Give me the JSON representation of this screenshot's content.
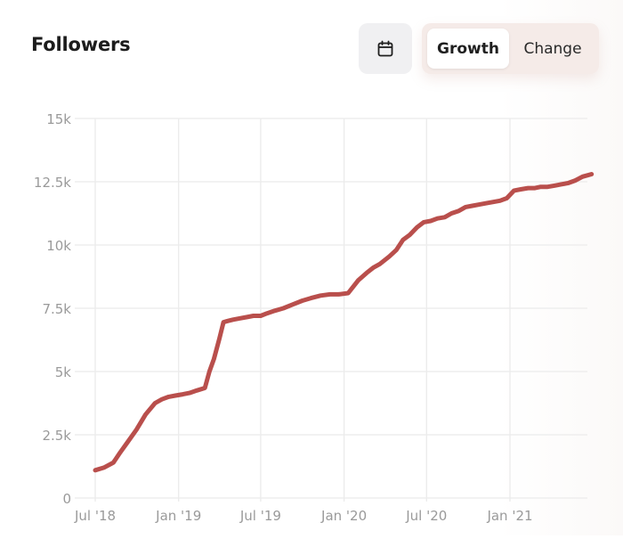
{
  "header": {
    "title": "Followers",
    "calendar_icon": "calendar-icon",
    "tabs": [
      {
        "label": "Growth",
        "active": true
      },
      {
        "label": "Change",
        "active": false
      }
    ]
  },
  "colors": {
    "line": "#b94f4c",
    "grid": "#ebebeb",
    "tick": "#9a9a9a",
    "toggle_bg": "#f5ebe8",
    "calendar_bg": "#f0f0f2"
  },
  "chart_data": {
    "type": "line",
    "xlabel": "",
    "ylabel": "",
    "ylim": [
      0,
      15000
    ],
    "yticks": [
      0,
      2500,
      5000,
      7500,
      10000,
      12500,
      15000
    ],
    "ytick_labels": [
      "0",
      "2.5k",
      "5k",
      "7.5k",
      "10k",
      "12.5k",
      "15k"
    ],
    "xlim": [
      "2018-07-01",
      "2021-06-30"
    ],
    "xticks": [
      "2018-07-01",
      "2019-01-01",
      "2019-07-01",
      "2020-01-01",
      "2020-07-01",
      "2021-01-01"
    ],
    "xtick_labels": [
      "Jul '18",
      "Jan '19",
      "Jul '19",
      "Jan '20",
      "Jul '20",
      "Jan '21"
    ],
    "grid": true,
    "series": [
      {
        "x": [
          "2018-07-01",
          "2018-07-20",
          "2018-08-10",
          "2018-08-25",
          "2018-09-10",
          "2018-09-30",
          "2018-10-20",
          "2018-11-10",
          "2018-11-25",
          "2018-12-10",
          "2018-12-25",
          "2019-01-10",
          "2019-01-25",
          "2019-02-10",
          "2019-02-28",
          "2019-03-10",
          "2019-03-20",
          "2019-04-01",
          "2019-04-10",
          "2019-04-20",
          "2019-05-01",
          "2019-05-15",
          "2019-06-01",
          "2019-06-15",
          "2019-07-01",
          "2019-07-15",
          "2019-08-01",
          "2019-08-20",
          "2019-09-10",
          "2019-10-01",
          "2019-10-20",
          "2019-11-10",
          "2019-12-01",
          "2019-12-20",
          "2020-01-10",
          "2020-02-01",
          "2020-02-20",
          "2020-03-05",
          "2020-03-20",
          "2020-04-10",
          "2020-04-25",
          "2020-05-10",
          "2020-05-25",
          "2020-06-10",
          "2020-06-25",
          "2020-07-10",
          "2020-07-25",
          "2020-08-10",
          "2020-08-25",
          "2020-09-10",
          "2020-09-25",
          "2020-10-10",
          "2020-10-25",
          "2020-11-10",
          "2020-11-25",
          "2020-12-10",
          "2020-12-25",
          "2021-01-10",
          "2021-01-25",
          "2021-02-10",
          "2021-02-25",
          "2021-03-10",
          "2021-03-25",
          "2021-04-10",
          "2021-04-25",
          "2021-05-10",
          "2021-05-25",
          "2021-06-10",
          "2021-06-30"
        ],
        "y": [
          1100,
          1200,
          1400,
          1800,
          2200,
          2700,
          3300,
          3750,
          3900,
          4000,
          4050,
          4100,
          4150,
          4250,
          4350,
          5000,
          5500,
          6300,
          6950,
          7000,
          7050,
          7100,
          7150,
          7200,
          7200,
          7300,
          7400,
          7500,
          7650,
          7800,
          7900,
          8000,
          8050,
          8050,
          8100,
          8600,
          8900,
          9100,
          9250,
          9550,
          9800,
          10200,
          10400,
          10700,
          10900,
          10950,
          11050,
          11100,
          11250,
          11350,
          11500,
          11550,
          11600,
          11650,
          11700,
          11750,
          11850,
          12150,
          12200,
          12250,
          12250,
          12300,
          12300,
          12350,
          12400,
          12450,
          12550,
          12700,
          12800
        ]
      }
    ]
  }
}
